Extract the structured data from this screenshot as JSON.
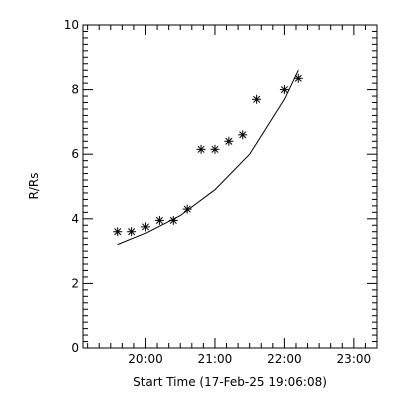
{
  "chart_data": {
    "type": "scatter",
    "title": "",
    "xlabel": "Start Time (17-Feb-25 19:06:08)",
    "ylabel": "R/Rs",
    "xlim": [
      "19:06",
      "23:20"
    ],
    "ylim": [
      0,
      10
    ],
    "x_ticks": [
      "20:00",
      "21:00",
      "22:00",
      "23:00"
    ],
    "y_ticks": [
      "0",
      "2",
      "4",
      "6",
      "8",
      "10"
    ],
    "grid": false,
    "marker": "asterisk",
    "color": "#000000",
    "series": [
      {
        "points": [
          {
            "x": "19:36",
            "y": 3.6
          },
          {
            "x": "19:48",
            "y": 3.6
          },
          {
            "x": "20:00",
            "y": 3.75
          },
          {
            "x": "20:12",
            "y": 3.95
          },
          {
            "x": "20:24",
            "y": 3.95
          },
          {
            "x": "20:36",
            "y": 4.3
          },
          {
            "x": "20:48",
            "y": 6.15
          },
          {
            "x": "21:00",
            "y": 6.15
          },
          {
            "x": "21:12",
            "y": 6.4
          },
          {
            "x": "21:24",
            "y": 6.6
          },
          {
            "x": "21:36",
            "y": 7.7
          },
          {
            "x": "22:00",
            "y": 8.0
          },
          {
            "x": "22:12",
            "y": 8.35
          }
        ]
      }
    ],
    "fit_line": [
      {
        "x": "19:36",
        "y": 3.2
      },
      {
        "x": "20:00",
        "y": 3.55
      },
      {
        "x": "20:30",
        "y": 4.1
      },
      {
        "x": "21:00",
        "y": 4.9
      },
      {
        "x": "21:30",
        "y": 6.0
      },
      {
        "x": "22:00",
        "y": 7.7
      },
      {
        "x": "22:12",
        "y": 8.6
      }
    ]
  }
}
